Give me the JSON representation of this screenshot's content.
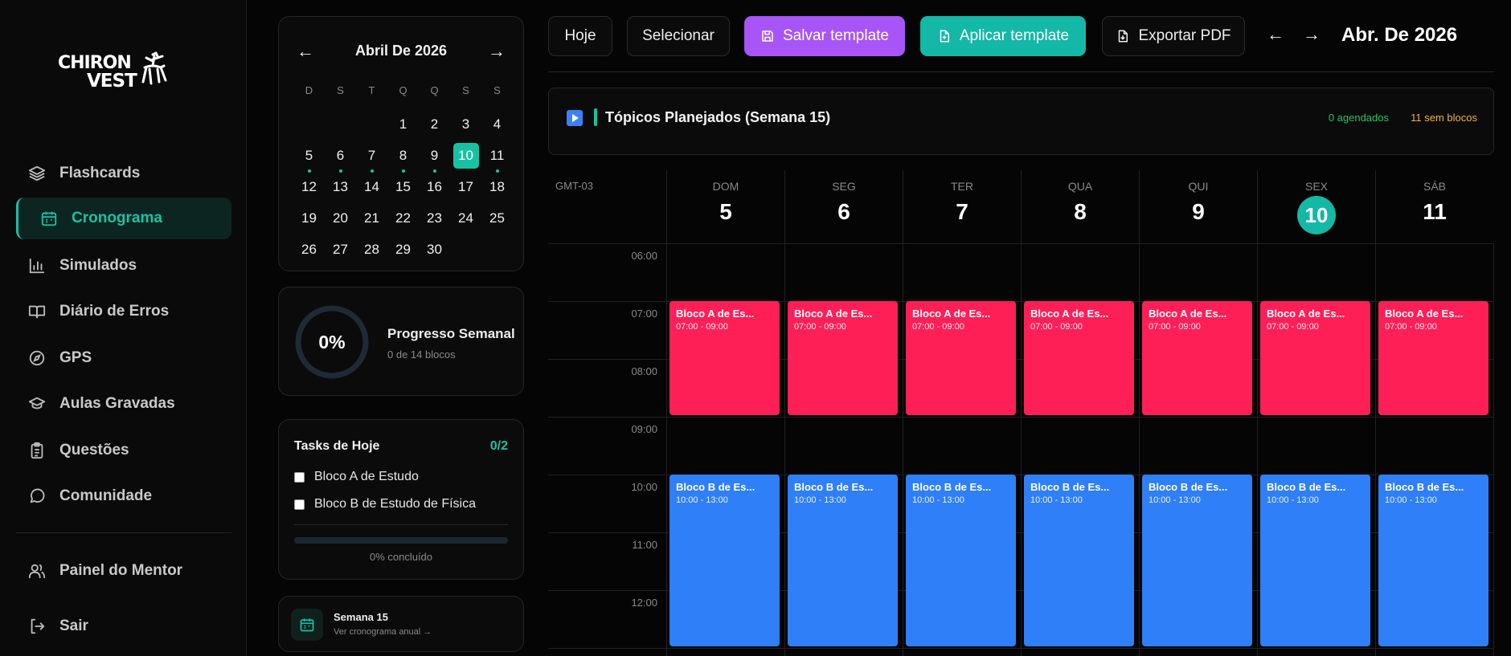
{
  "brand": {
    "line1": "CHIRON",
    "line2": "VEST"
  },
  "sidebar": {
    "items": [
      {
        "label": "Flashcards",
        "icon": "layers-icon"
      },
      {
        "label": "Cronograma",
        "icon": "calendar-icon",
        "active": true
      },
      {
        "label": "Simulados",
        "icon": "bar-chart-icon"
      },
      {
        "label": "Diário de Erros",
        "icon": "book-open-icon"
      },
      {
        "label": "GPS",
        "icon": "compass-icon"
      },
      {
        "label": "Aulas Gravadas",
        "icon": "graduation-cap-icon"
      },
      {
        "label": "Questões",
        "icon": "clipboard-list-icon"
      },
      {
        "label": "Comunidade",
        "icon": "message-circle-icon"
      }
    ],
    "footer": [
      {
        "label": "Painel do Mentor",
        "icon": "users-icon"
      },
      {
        "label": "Sair",
        "icon": "logout-icon"
      }
    ]
  },
  "mini_calendar": {
    "title": "Abril De 2026",
    "prev": "←",
    "next": "→",
    "weekdays": [
      "D",
      "S",
      "T",
      "Q",
      "Q",
      "S",
      "S"
    ],
    "leading_blanks": 3,
    "days": [
      "1",
      "2",
      "3",
      "4",
      "5",
      "6",
      "7",
      "8",
      "9",
      "10",
      "11",
      "12",
      "13",
      "14",
      "15",
      "16",
      "17",
      "18",
      "19",
      "20",
      "21",
      "22",
      "23",
      "24",
      "25",
      "26",
      "27",
      "28",
      "29",
      "30"
    ],
    "today": "10",
    "dotted": [
      "5",
      "6",
      "7",
      "8",
      "9",
      "11"
    ]
  },
  "progress": {
    "value": "0%",
    "title": "Progresso Semanal",
    "subtitle": "0 de 14 blocos"
  },
  "tasks": {
    "title": "Tasks de Hoje",
    "count": "0/2",
    "items": [
      "Bloco A de Estudo",
      "Bloco B de Estudo de Física"
    ],
    "percent_label": "0% concluído"
  },
  "week_card": {
    "title": "Semana 15",
    "subtitle": "Ver cronograma anual →"
  },
  "toolbar": {
    "today": "Hoje",
    "select": "Selecionar",
    "save_template": "Salvar template",
    "apply_template": "Aplicar template",
    "export_pdf": "Exportar PDF",
    "prev": "←",
    "next": "→",
    "month": "Abr. De 2026",
    "colors": {
      "save": "#a855f7",
      "apply": "#14b8a6"
    }
  },
  "topics": {
    "title": "Tópicos Planejados (Semana 15)",
    "scheduled": "0 agendados",
    "no_blocks": "11 sem blocos"
  },
  "week_grid": {
    "timezone": "GMT-03",
    "days": [
      {
        "name": "DOM",
        "date": "5"
      },
      {
        "name": "SEG",
        "date": "6"
      },
      {
        "name": "TER",
        "date": "7"
      },
      {
        "name": "QUA",
        "date": "8"
      },
      {
        "name": "QUI",
        "date": "9"
      },
      {
        "name": "SEX",
        "date": "10",
        "today": true
      },
      {
        "name": "SÁB",
        "date": "11"
      }
    ],
    "hours": [
      "06:00",
      "07:00",
      "08:00",
      "09:00",
      "10:00",
      "11:00",
      "12:00"
    ],
    "events": [
      {
        "title": "Bloco A de Es...",
        "time": "07:00 - 09:00",
        "color": "#ff1f57"
      },
      {
        "title": "Bloco B de Es...",
        "time": "10:00 - 13:00",
        "color": "#2f7ff8"
      }
    ]
  }
}
